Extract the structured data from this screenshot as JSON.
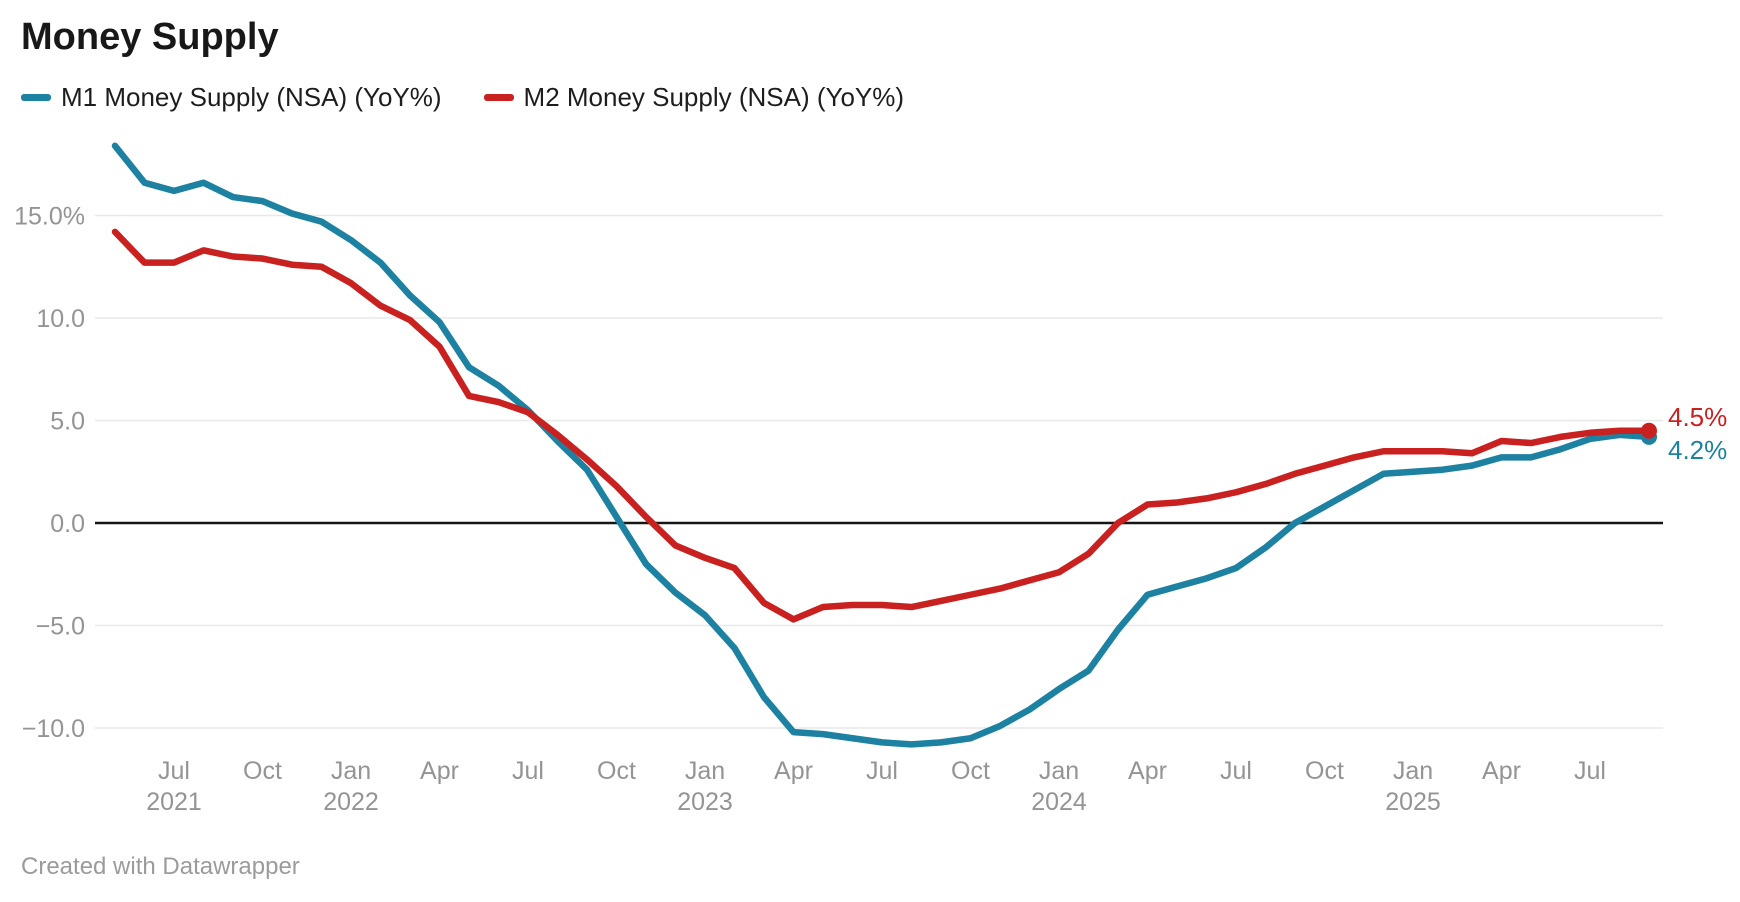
{
  "header": {
    "title": "Money Supply"
  },
  "legend": {
    "items": [
      {
        "label": "M1 Money Supply (NSA) (YoY%)",
        "color": "#1d81a2"
      },
      {
        "label": "M2 Money Supply (NSA) (YoY%)",
        "color": "#c9211f"
      }
    ]
  },
  "footer": {
    "credit": "Created with Datawrapper"
  },
  "chart_data": {
    "type": "line",
    "title": "Money Supply",
    "xlabel": "",
    "ylabel": "",
    "ylim": [
      -11.8,
      18.8
    ],
    "grid": true,
    "zero_line": true,
    "legend_position": "top",
    "x": [
      "May 2021",
      "Jun 2021",
      "Jul 2021",
      "Aug 2021",
      "Sep 2021",
      "Oct 2021",
      "Nov 2021",
      "Dec 2021",
      "Jan 2022",
      "Feb 2022",
      "Mar 2022",
      "Apr 2022",
      "May 2022",
      "Jun 2022",
      "Jul 2022",
      "Aug 2022",
      "Sep 2022",
      "Oct 2022",
      "Nov 2022",
      "Dec 2022",
      "Jan 2023",
      "Feb 2023",
      "Mar 2023",
      "Apr 2023",
      "May 2023",
      "Jun 2023",
      "Jul 2023",
      "Aug 2023",
      "Sep 2023",
      "Oct 2023",
      "Nov 2023",
      "Dec 2023",
      "Jan 2024",
      "Feb 2024",
      "Mar 2024",
      "Apr 2024",
      "May 2024",
      "Jun 2024",
      "Jul 2024",
      "Aug 2024",
      "Sep 2024",
      "Oct 2024",
      "Nov 2024",
      "Dec 2024",
      "Jan 2025",
      "Feb 2025",
      "Mar 2025",
      "Apr 2025",
      "May 2025",
      "Jun 2025",
      "Jul 2025",
      "Aug 2025",
      "Sep 2025"
    ],
    "series": [
      {
        "name": "M1 Money Supply (NSA) (YoY%)",
        "color": "#1d81a2",
        "end_label": "4.2%",
        "values": [
          18.4,
          16.6,
          16.2,
          16.6,
          15.9,
          15.7,
          15.1,
          14.7,
          13.8,
          12.7,
          11.1,
          9.8,
          7.6,
          6.7,
          5.5,
          4.0,
          2.6,
          0.3,
          -2.0,
          -3.4,
          -4.5,
          -6.1,
          -8.5,
          -10.2,
          -10.3,
          -10.5,
          -10.7,
          -10.8,
          -10.7,
          -10.5,
          -9.9,
          -9.1,
          -8.1,
          -7.2,
          -5.2,
          -3.5,
          -3.1,
          -2.7,
          -2.2,
          -1.2,
          0.0,
          0.8,
          1.6,
          2.4,
          2.5,
          2.6,
          2.8,
          3.2,
          3.2,
          3.6,
          4.1,
          4.3,
          4.2
        ]
      },
      {
        "name": "M2 Money Supply (NSA) (YoY%)",
        "color": "#c9211f",
        "end_label": "4.5%",
        "values": [
          14.2,
          12.7,
          12.7,
          13.3,
          13.0,
          12.9,
          12.6,
          12.5,
          11.7,
          10.6,
          9.9,
          8.6,
          6.2,
          5.9,
          5.4,
          4.3,
          3.1,
          1.8,
          0.3,
          -1.1,
          -1.7,
          -2.2,
          -3.9,
          -4.7,
          -4.1,
          -4.0,
          -4.0,
          -4.1,
          -3.8,
          -3.5,
          -3.2,
          -2.8,
          -2.4,
          -1.5,
          0.0,
          0.9,
          1.0,
          1.2,
          1.5,
          1.9,
          2.4,
          2.8,
          3.2,
          3.5,
          3.5,
          3.5,
          3.4,
          4.0,
          3.9,
          4.2,
          4.4,
          4.5,
          4.5
        ]
      }
    ],
    "y_ticks": [
      {
        "value": 15,
        "label": "15.0%"
      },
      {
        "value": 10,
        "label": "10.0"
      },
      {
        "value": 5,
        "label": "5.0"
      },
      {
        "value": 0,
        "label": "0.0"
      },
      {
        "value": -5,
        "label": "−5.0"
      },
      {
        "value": -10,
        "label": "−10.0"
      }
    ],
    "x_ticks": [
      {
        "index": 2,
        "label": "Jul",
        "year": "2021"
      },
      {
        "index": 5,
        "label": "Oct"
      },
      {
        "index": 8,
        "label": "Jan",
        "year": "2022"
      },
      {
        "index": 11,
        "label": "Apr"
      },
      {
        "index": 14,
        "label": "Jul"
      },
      {
        "index": 17,
        "label": "Oct"
      },
      {
        "index": 20,
        "label": "Jan",
        "year": "2023"
      },
      {
        "index": 23,
        "label": "Apr"
      },
      {
        "index": 26,
        "label": "Jul"
      },
      {
        "index": 29,
        "label": "Oct"
      },
      {
        "index": 32,
        "label": "Jan",
        "year": "2024"
      },
      {
        "index": 35,
        "label": "Apr"
      },
      {
        "index": 38,
        "label": "Jul"
      },
      {
        "index": 41,
        "label": "Oct"
      },
      {
        "index": 44,
        "label": "Jan",
        "year": "2025"
      },
      {
        "index": 47,
        "label": "Apr"
      },
      {
        "index": 50,
        "label": "Jul"
      }
    ]
  }
}
